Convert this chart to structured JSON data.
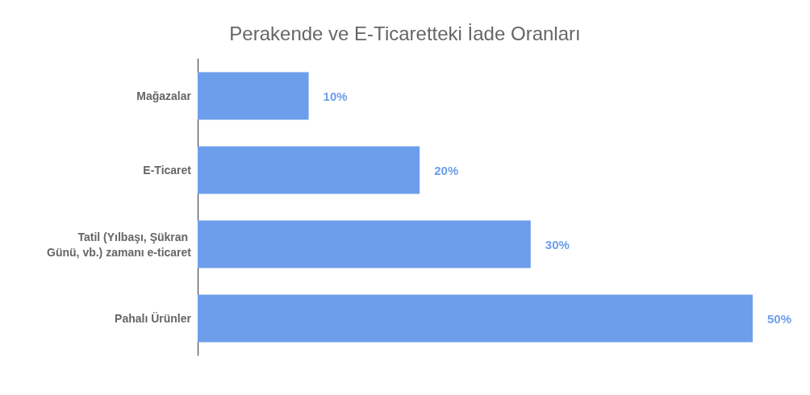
{
  "chart_data": {
    "type": "bar",
    "orientation": "horizontal",
    "title": "Perakende ve E-Ticaretteki İade Oranları",
    "categories": [
      "Mağazalar",
      "E-Ticaret",
      "Tatil (Yılbaşı, Şükran Günü, vb.) zamanı e-ticaret",
      "Pahalı Ürünler"
    ],
    "values": [
      10,
      20,
      30,
      50
    ],
    "value_labels": [
      "10%",
      "20%",
      "30%",
      "50%"
    ],
    "color": "#6d9eeb"
  }
}
